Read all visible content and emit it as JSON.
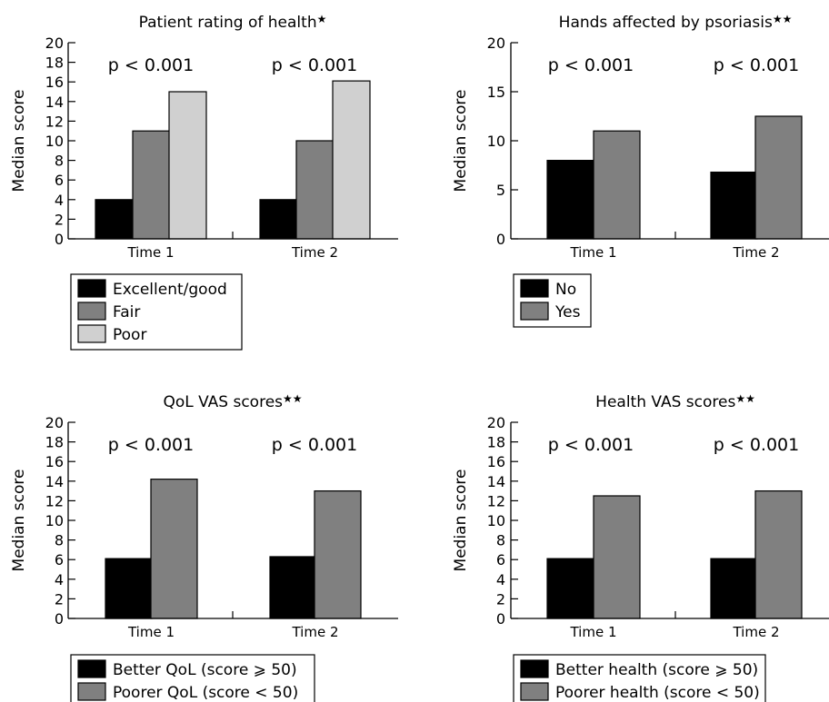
{
  "chart_data": [
    {
      "type": "bar",
      "title": "Patient rating of health",
      "title_marker": "★",
      "ylabel": "Median score",
      "ylim": [
        0,
        20
      ],
      "yticks": [
        0,
        2,
        4,
        6,
        8,
        10,
        12,
        14,
        16,
        18,
        20
      ],
      "categories": [
        "Time 1",
        "Time 2"
      ],
      "annotations": [
        "p < 0.001",
        "p < 0.001"
      ],
      "series": [
        {
          "name": "Excellent/good",
          "color": "#000000",
          "values": [
            4,
            4
          ]
        },
        {
          "name": "Fair",
          "color": "#808080",
          "values": [
            11,
            10
          ]
        },
        {
          "name": "Poor",
          "color": "#d0d0d0",
          "values": [
            15,
            16.1
          ]
        }
      ],
      "legend_position": "bottom-left"
    },
    {
      "type": "bar",
      "title": "Hands affected by psoriasis",
      "title_marker": "★★",
      "ylabel": "Median score",
      "ylim": [
        0,
        20
      ],
      "yticks": [
        0,
        5,
        10,
        15,
        20
      ],
      "categories": [
        "Time 1",
        "Time 2"
      ],
      "annotations": [
        "p < 0.001",
        "p < 0.001"
      ],
      "series": [
        {
          "name": "No",
          "color": "#000000",
          "values": [
            8,
            6.8
          ]
        },
        {
          "name": "Yes",
          "color": "#808080",
          "values": [
            11,
            12.5
          ]
        }
      ],
      "legend_position": "bottom-left"
    },
    {
      "type": "bar",
      "title": "QoL VAS scores",
      "title_marker": "★★",
      "ylabel": "Median score",
      "ylim": [
        0,
        20
      ],
      "yticks": [
        0,
        2,
        4,
        6,
        8,
        10,
        12,
        14,
        16,
        18,
        20
      ],
      "categories": [
        "Time 1",
        "Time 2"
      ],
      "annotations": [
        "p < 0.001",
        "p < 0.001"
      ],
      "series": [
        {
          "name": "Better QoL (score ⩾ 50)",
          "color": "#000000",
          "values": [
            6.1,
            6.3
          ]
        },
        {
          "name": "Poorer QoL (score < 50)",
          "color": "#808080",
          "values": [
            14.2,
            13
          ]
        }
      ],
      "legend_position": "bottom-left"
    },
    {
      "type": "bar",
      "title": "Health VAS scores",
      "title_marker": "★★",
      "ylabel": "Median score",
      "ylim": [
        0,
        20
      ],
      "yticks": [
        0,
        2,
        4,
        6,
        8,
        10,
        12,
        14,
        16,
        18,
        20
      ],
      "categories": [
        "Time 1",
        "Time 2"
      ],
      "annotations": [
        "p < 0.001",
        "p < 0.001"
      ],
      "series": [
        {
          "name": "Better health (score ⩾ 50)",
          "color": "#000000",
          "values": [
            6.1,
            6.1
          ]
        },
        {
          "name": "Poorer health (score < 50)",
          "color": "#808080",
          "values": [
            12.5,
            13
          ]
        }
      ],
      "legend_position": "bottom-left"
    }
  ]
}
